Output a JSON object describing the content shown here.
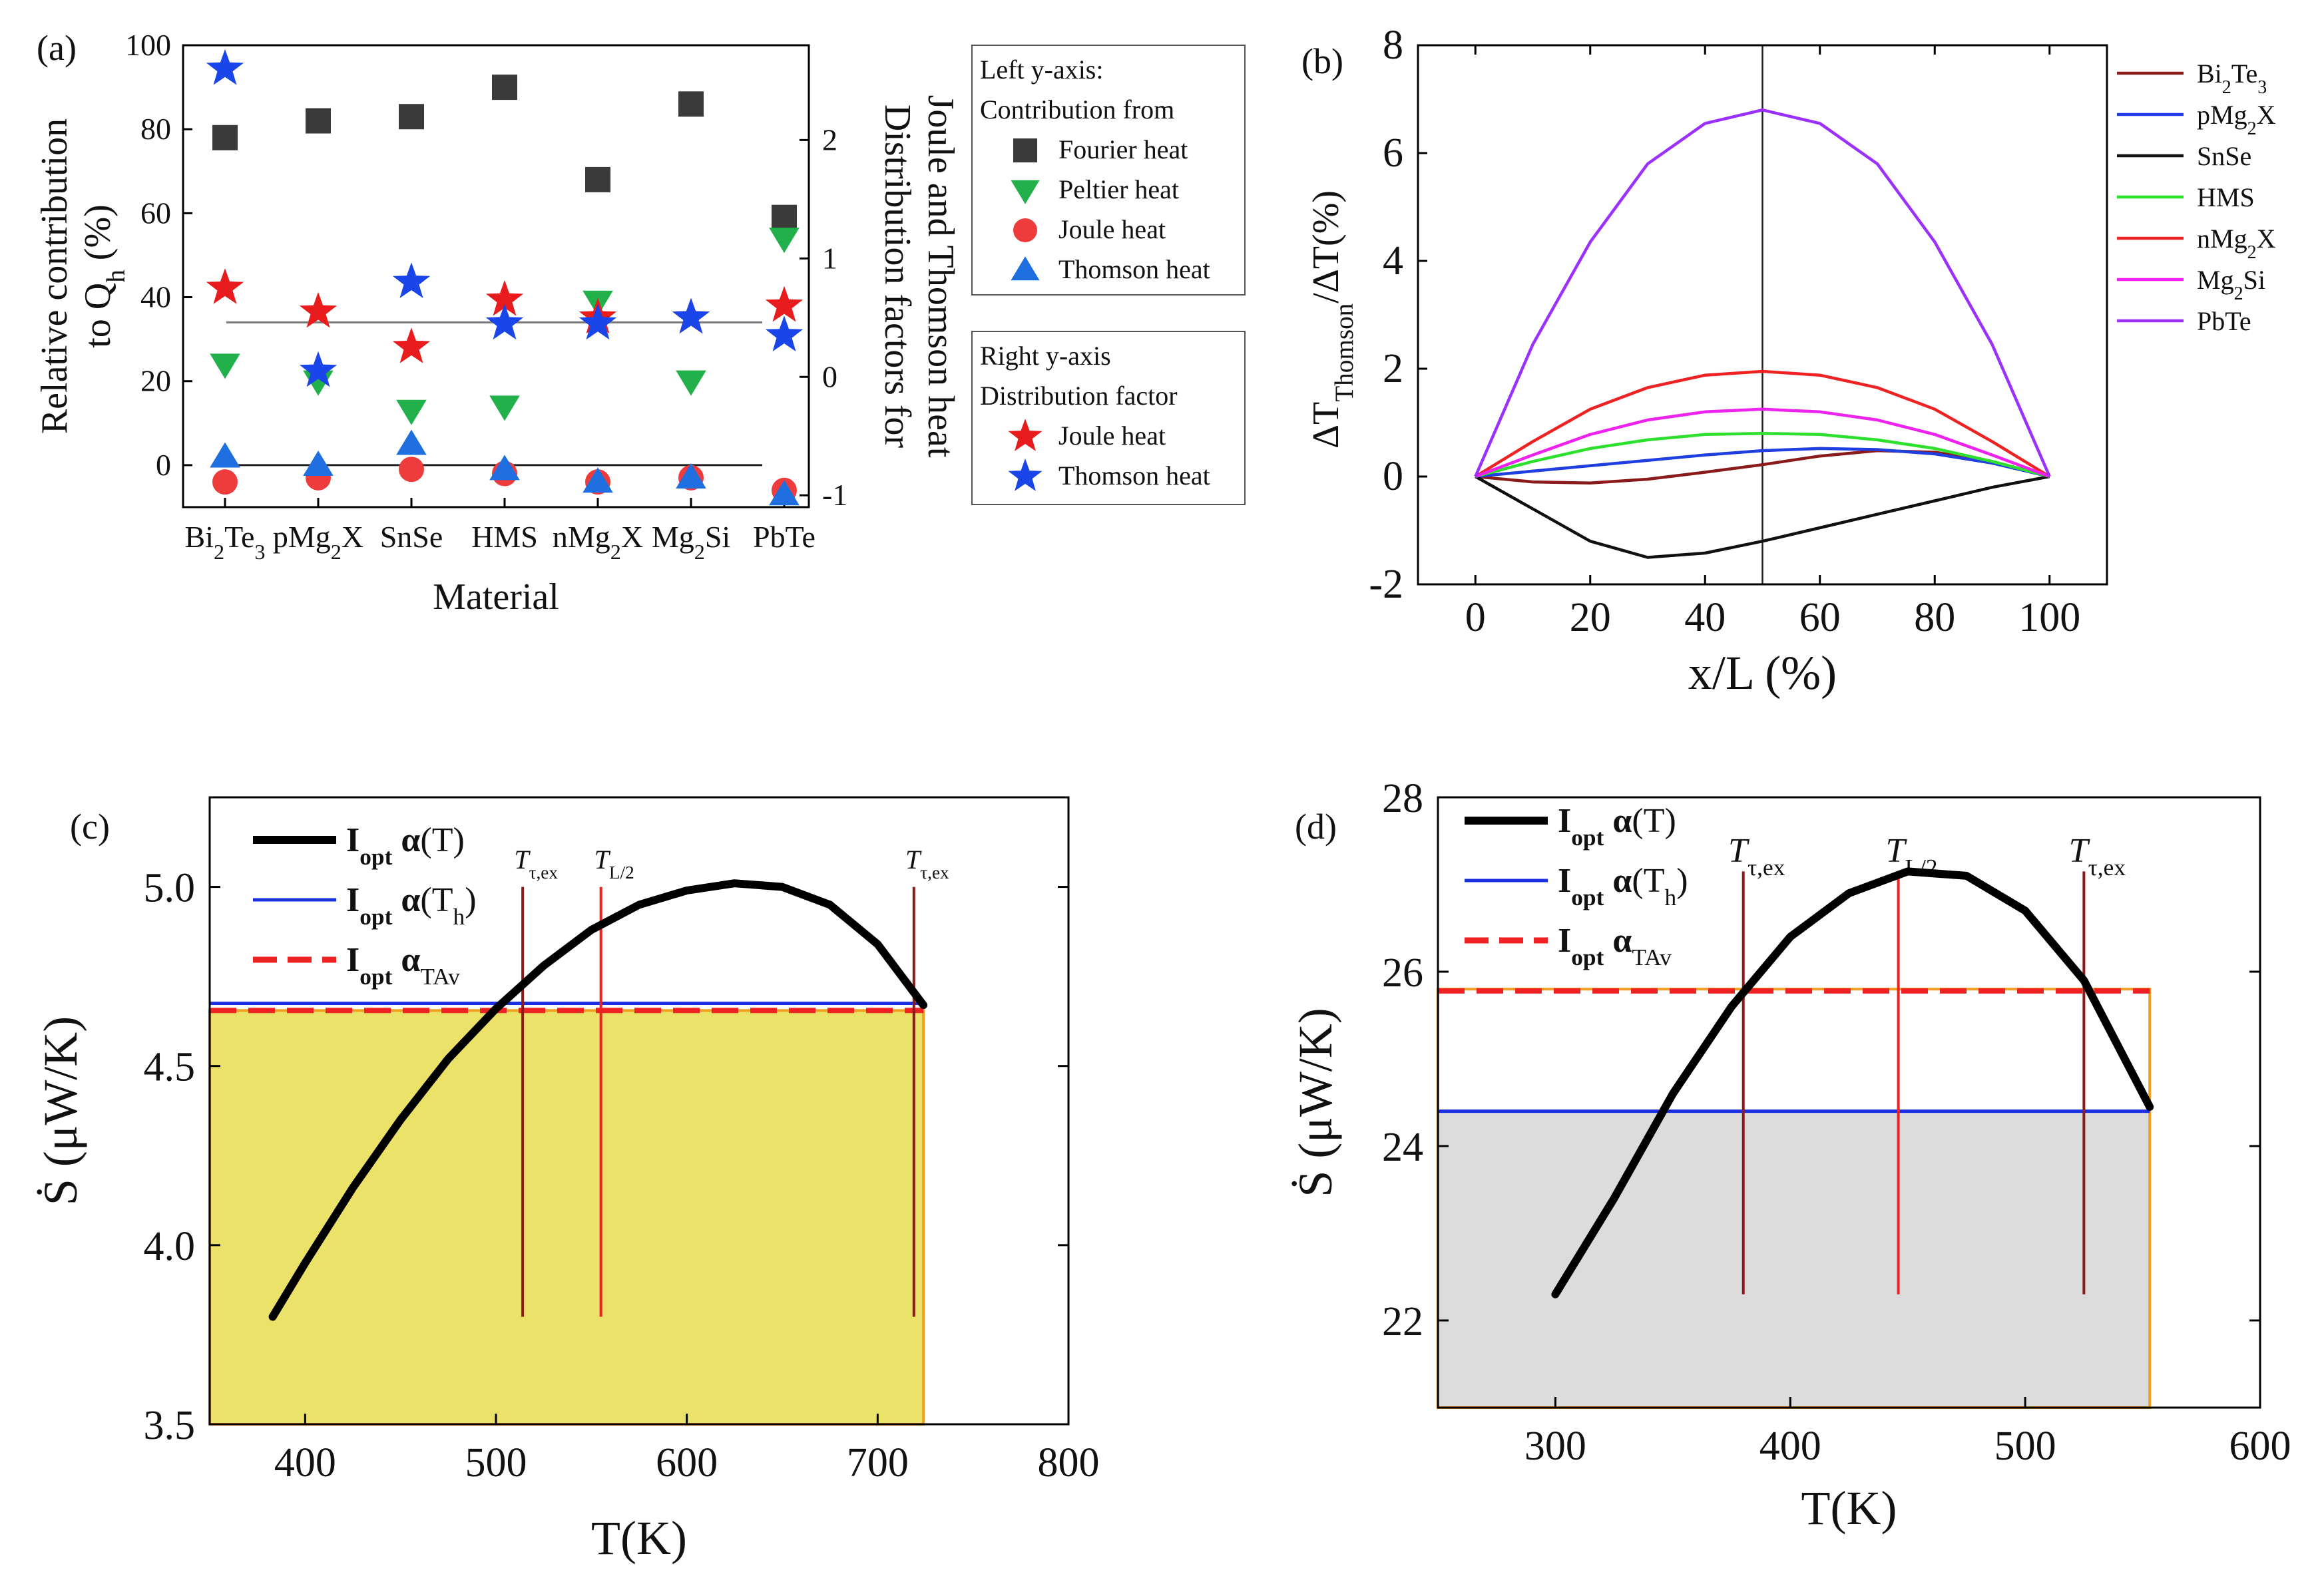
{
  "chart_data": [
    {
      "panel": "(a)",
      "type": "scatter",
      "xlabel": "Material",
      "ylabel_left": [
        "Relative contribution",
        "to Q_h (%)"
      ],
      "ylabel_right": [
        "Distribution factors for",
        "Joule and Thomson heat"
      ],
      "categories": [
        "Bi2Te3",
        "pMg2X",
        "SnSe",
        "HMS",
        "nMg2X",
        "Mg2Si",
        "PbTe"
      ],
      "category_labels": [
        {
          "base": "Bi",
          "sub1": "2",
          "mid": "Te",
          "sub2": "3"
        },
        {
          "base": "pMg",
          "sub1": "2",
          "mid": "X",
          "sub2": ""
        },
        {
          "base": "SnSe",
          "sub1": "",
          "mid": "",
          "sub2": ""
        },
        {
          "base": "HMS",
          "sub1": "",
          "mid": "",
          "sub2": ""
        },
        {
          "base": "nMg",
          "sub1": "2",
          "mid": "X",
          "sub2": ""
        },
        {
          "base": "Mg",
          "sub1": "2",
          "mid": "Si",
          "sub2": ""
        },
        {
          "base": "PbTe",
          "sub1": "",
          "mid": "",
          "sub2": ""
        }
      ],
      "ylim_left": [
        -10,
        100
      ],
      "yticks_left": [
        0,
        20,
        40,
        60,
        80,
        100
      ],
      "ylim_right": [
        -1.1,
        2.8
      ],
      "yticks_right": [
        -1,
        0,
        1,
        2
      ],
      "legend_left_title": [
        "Left y-axis:",
        "Contribution from"
      ],
      "legend_right_title": [
        "Right y-axis",
        "Distribution factor"
      ],
      "series": [
        {
          "name": "Fourier heat",
          "axis": "left",
          "marker": "square",
          "color": "#3a3a3a",
          "values": [
            78,
            82,
            83,
            90,
            68,
            86,
            59
          ]
        },
        {
          "name": "Peltier heat",
          "axis": "left",
          "marker": "triangle-down",
          "color": "#22b04b",
          "values": [
            24,
            20,
            13,
            14,
            39,
            20,
            54
          ]
        },
        {
          "name": "Joule heat",
          "axis": "left",
          "marker": "circle",
          "color": "#ee3b3b",
          "values": [
            -4,
            -3,
            -1,
            -2,
            -4,
            -3,
            -6
          ]
        },
        {
          "name": "Thomson heat",
          "axis": "left",
          "marker": "triangle-up",
          "color": "#1f6fe0",
          "values": [
            2,
            0,
            5,
            -1,
            -4,
            -3,
            -7
          ]
        },
        {
          "name": "Joule heat",
          "axis": "right",
          "marker": "star",
          "color": "#e81c1c",
          "values": [
            0.75,
            0.55,
            0.25,
            0.65,
            0.5,
            0.5,
            0.6
          ]
        },
        {
          "name": "Thomson heat",
          "axis": "right",
          "marker": "star",
          "color": "#1a45e8",
          "values": [
            2.6,
            0.05,
            0.8,
            0.45,
            0.45,
            0.5,
            0.35
          ]
        }
      ],
      "hlines_left": [
        34,
        0
      ]
    },
    {
      "panel": "(b)",
      "type": "line",
      "xlabel": "x/L (%)",
      "ylabel": "ΔT_Thomson/ΔT(%)",
      "ylabel_parts": {
        "pre": "ΔT",
        "sub": "Thomson",
        "post": "/ΔT(%)"
      },
      "xlim": [
        -10,
        110
      ],
      "xticks": [
        0,
        20,
        40,
        60,
        80,
        100
      ],
      "ylim": [
        -2,
        8
      ],
      "yticks": [
        -2,
        0,
        2,
        4,
        6,
        8
      ],
      "vline_x": 50,
      "x": [
        0,
        10,
        20,
        30,
        40,
        50,
        60,
        70,
        80,
        90,
        100
      ],
      "series": [
        {
          "name": "Bi2Te3",
          "label": {
            "base": "Bi",
            "sub1": "2",
            "mid": "Te",
            "sub2": "3"
          },
          "color": "#8b1a1a",
          "values": [
            0,
            -0.1,
            -0.12,
            -0.05,
            0.08,
            0.22,
            0.38,
            0.48,
            0.45,
            0.28,
            0
          ]
        },
        {
          "name": "pMg2X",
          "label": {
            "base": "pMg",
            "sub1": "2",
            "mid": "X",
            "sub2": ""
          },
          "color": "#1f3fe0",
          "values": [
            0,
            0.1,
            0.2,
            0.3,
            0.4,
            0.48,
            0.52,
            0.5,
            0.42,
            0.25,
            0
          ]
        },
        {
          "name": "SnSe",
          "label": {
            "base": "SnSe",
            "sub1": "",
            "mid": "",
            "sub2": ""
          },
          "color": "#111111",
          "values": [
            0,
            -0.6,
            -1.2,
            -1.5,
            -1.42,
            -1.2,
            -0.95,
            -0.7,
            -0.45,
            -0.2,
            0
          ]
        },
        {
          "name": "HMS",
          "label": {
            "base": "HMS",
            "sub1": "",
            "mid": "",
            "sub2": ""
          },
          "color": "#2ee02e",
          "values": [
            0,
            0.28,
            0.52,
            0.68,
            0.78,
            0.8,
            0.78,
            0.68,
            0.52,
            0.28,
            0
          ]
        },
        {
          "name": "nMg2X",
          "label": {
            "base": "nMg",
            "sub1": "2",
            "mid": "X",
            "sub2": ""
          },
          "color": "#ee2222",
          "values": [
            0,
            0.65,
            1.25,
            1.65,
            1.88,
            1.95,
            1.88,
            1.65,
            1.25,
            0.65,
            0
          ]
        },
        {
          "name": "Mg2Si",
          "label": {
            "base": "Mg",
            "sub1": "2",
            "mid": "Si",
            "sub2": ""
          },
          "color": "#ee22ee",
          "values": [
            0,
            0.4,
            0.78,
            1.05,
            1.2,
            1.25,
            1.2,
            1.05,
            0.78,
            0.4,
            0
          ]
        },
        {
          "name": "PbTe",
          "label": {
            "base": "PbTe",
            "sub1": "",
            "mid": "",
            "sub2": ""
          },
          "color": "#9b30ff",
          "values": [
            0,
            2.45,
            4.35,
            5.8,
            6.55,
            6.8,
            6.55,
            5.8,
            4.35,
            2.45,
            0
          ]
        }
      ]
    },
    {
      "panel": "(c)",
      "type": "line",
      "xlabel": "T(K)",
      "ylabel": "Ṡ (μW/K)",
      "xlim": [
        350,
        800
      ],
      "xticks": [
        400,
        500,
        600,
        700,
        800
      ],
      "ylim": [
        3.5,
        5.25
      ],
      "yticks": [
        3.5,
        4.0,
        4.5,
        5.0
      ],
      "ytick_labels": [
        "3.5",
        "4.0",
        "4.5",
        "5.0"
      ],
      "fill_color": "#ebe26a",
      "fill_xrange": [
        350,
        724
      ],
      "fill_top": 4.655,
      "curve_T": [
        383,
        400,
        425,
        450,
        475,
        500,
        525,
        550,
        575,
        600,
        625,
        650,
        675,
        700,
        724
      ],
      "curve_S": [
        3.8,
        3.95,
        4.16,
        4.35,
        4.52,
        4.66,
        4.78,
        4.88,
        4.95,
        4.99,
        5.01,
        5.0,
        4.95,
        4.84,
        4.67
      ],
      "alpha_Th_value": 4.675,
      "alpha_TAv_value": 4.655,
      "markers": [
        {
          "x": 514,
          "label": "τ,ex",
          "color": "#8b1a1a"
        },
        {
          "x": 555,
          "label": "L/2",
          "color": "#ee2222"
        },
        {
          "x": 719,
          "label": "τ,ex",
          "color": "#8b1a1a"
        }
      ],
      "marker_ybottom": 3.8,
      "marker_ytop": 5.0,
      "legend": [
        {
          "main": "I",
          "sub": "opt",
          "greek": " α",
          "arg": "(T)",
          "argsub": ""
        },
        {
          "main": "I",
          "sub": "opt",
          "greek": " α",
          "arg": "(T",
          "argsub": "h"
        },
        {
          "main": "I",
          "sub": "opt",
          "greek": " α",
          "arg": "",
          "argsub": "TAv"
        }
      ]
    },
    {
      "panel": "(d)",
      "type": "line",
      "xlabel": "T(K)",
      "ylabel": "Ṡ (μW/K)",
      "xlim": [
        250,
        600
      ],
      "xticks": [
        300,
        400,
        500,
        600
      ],
      "ylim": [
        21,
        28
      ],
      "yticks": [
        22,
        24,
        26,
        28
      ],
      "ytick_labels": [
        "22",
        "24",
        "26",
        "28"
      ],
      "fill_color": "#dcdcdc",
      "fill_xrange": [
        250,
        553
      ],
      "fill_top": 24.4,
      "box_top": 25.8,
      "curve_T": [
        300,
        325,
        350,
        375,
        400,
        425,
        450,
        475,
        500,
        525,
        553
      ],
      "curve_S": [
        22.3,
        23.4,
        24.6,
        25.6,
        26.4,
        26.9,
        27.15,
        27.1,
        26.7,
        25.9,
        24.45
      ],
      "alpha_Th_value": 24.4,
      "alpha_TAv_value": 25.78,
      "markers": [
        {
          "x": 380,
          "label": "τ,ex",
          "color": "#8b1a1a"
        },
        {
          "x": 446,
          "label": "L/2",
          "color": "#ee2222"
        },
        {
          "x": 525,
          "label": "τ,ex",
          "color": "#8b1a1a"
        }
      ],
      "marker_ybottom": 22.3,
      "marker_ytop": 27.15,
      "legend": [
        {
          "main": "I",
          "sub": "opt",
          "greek": " α",
          "arg": "(T)",
          "argsub": ""
        },
        {
          "main": "I",
          "sub": "opt",
          "greek": " α",
          "arg": "(T",
          "argsub": "h"
        },
        {
          "main": "I",
          "sub": "opt",
          "greek": " α",
          "arg": "",
          "argsub": "TAv"
        }
      ]
    }
  ]
}
